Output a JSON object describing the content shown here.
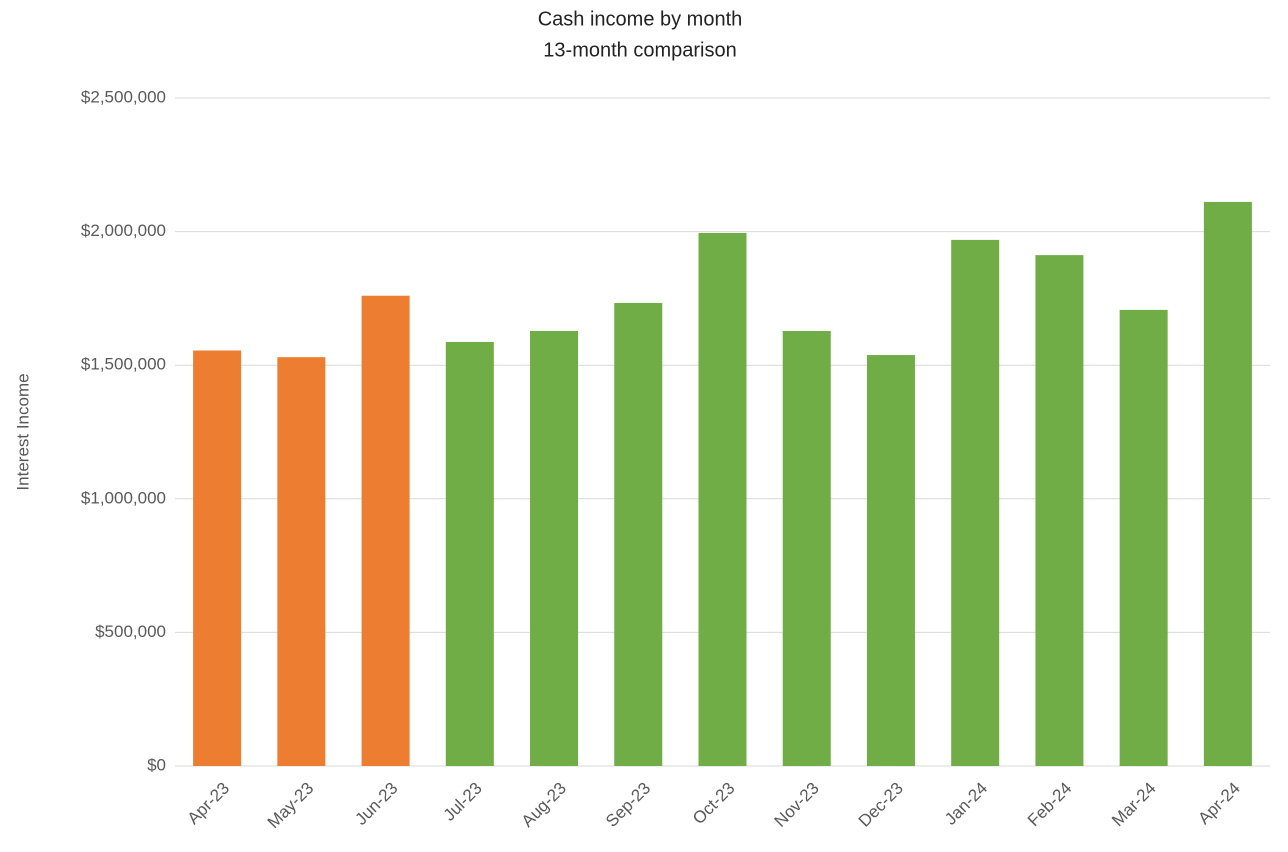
{
  "chart_data": {
    "type": "bar",
    "title": "Cash income by month",
    "subtitle": "13-month comparison",
    "y_label": "Interest Income",
    "categories": [
      "Apr-23",
      "May-23",
      "Jun-23",
      "Jul-23",
      "Aug-23",
      "Sep-23",
      "Oct-23",
      "Nov-23",
      "Dec-23",
      "Jan-24",
      "Feb-24",
      "Mar-24",
      "Apr-24"
    ],
    "values": [
      1555000,
      1530000,
      1760000,
      1587000,
      1628000,
      1733000,
      1995000,
      1628000,
      1538000,
      1969000,
      1912000,
      1707000,
      2111000
    ],
    "colors": [
      "#ed7d31",
      "#ed7d31",
      "#ed7d31",
      "#70ad47",
      "#70ad47",
      "#70ad47",
      "#70ad47",
      "#70ad47",
      "#70ad47",
      "#70ad47",
      "#70ad47",
      "#70ad47",
      "#70ad47"
    ],
    "ylim": [
      0,
      2500000
    ],
    "yticks": [
      {
        "value": 0,
        "label": "$0"
      },
      {
        "value": 500000,
        "label": "$500,000"
      },
      {
        "value": 1000000,
        "label": "$1,000,000"
      },
      {
        "value": 1500000,
        "label": "$1,500,000"
      },
      {
        "value": 2000000,
        "label": "$2,000,000"
      },
      {
        "value": 2500000,
        "label": "$2,500,000"
      }
    ],
    "grid": true
  }
}
